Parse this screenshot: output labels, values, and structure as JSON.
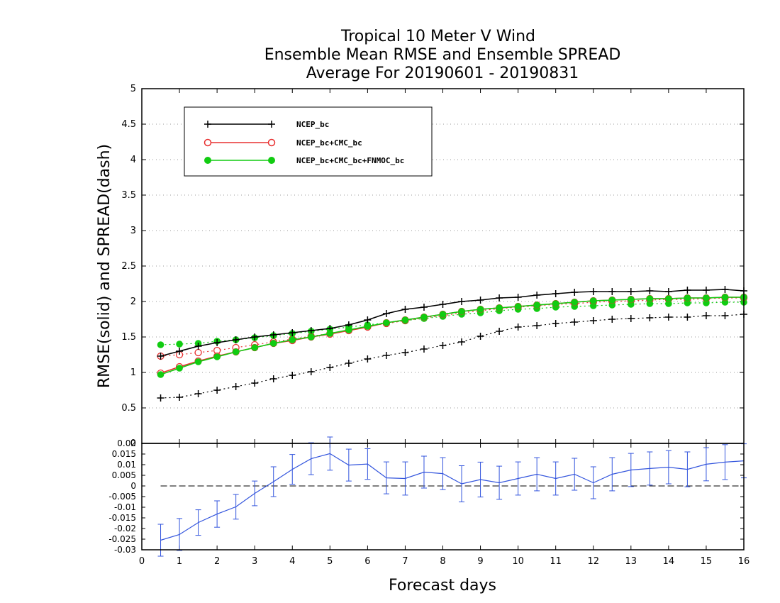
{
  "chart_data": [
    {
      "type": "line",
      "title_lines": [
        "Tropical 10 Meter V Wind",
        "Ensemble Mean RMSE and Ensemble SPREAD",
        "Average For 20190601 - 20190831"
      ],
      "ylabel": "RMSE(solid) and SPREAD(dash)",
      "xlabel": "Forecast days",
      "xlim": [
        0,
        16
      ],
      "ylim": [
        0,
        5
      ],
      "x_ticks": [
        "0",
        "1",
        "2",
        "3",
        "4",
        "5",
        "6",
        "7",
        "8",
        "9",
        "10",
        "11",
        "12",
        "13",
        "14",
        "15",
        "16"
      ],
      "y_ticks": [
        "0",
        "0.5",
        "1",
        "1.5",
        "2",
        "2.5",
        "3",
        "3.5",
        "4",
        "4.5",
        "5"
      ],
      "grid": "horizontal dotted",
      "legend_position": "top-left",
      "x": [
        0.5,
        1,
        1.5,
        2,
        2.5,
        3,
        3.5,
        4,
        4.5,
        5,
        5.5,
        6,
        6.5,
        7,
        7.5,
        8,
        8.5,
        9,
        9.5,
        10,
        10.5,
        11,
        11.5,
        12,
        12.5,
        13,
        13.5,
        14,
        14.5,
        15,
        15.5,
        16
      ],
      "series": [
        {
          "name": "NCEP_bc",
          "color": "#000000",
          "marker": "plus",
          "rmse": [
            1.23,
            1.3,
            1.37,
            1.42,
            1.46,
            1.5,
            1.53,
            1.56,
            1.59,
            1.62,
            1.67,
            1.74,
            1.83,
            1.89,
            1.92,
            1.96,
            2.0,
            2.02,
            2.05,
            2.06,
            2.09,
            2.11,
            2.13,
            2.14,
            2.14,
            2.14,
            2.15,
            2.14,
            2.16,
            2.16,
            2.17,
            2.15
          ],
          "spread": [
            0.64,
            0.65,
            0.7,
            0.75,
            0.8,
            0.85,
            0.91,
            0.96,
            1.01,
            1.07,
            1.13,
            1.19,
            1.24,
            1.28,
            1.33,
            1.38,
            1.43,
            1.51,
            1.58,
            1.64,
            1.66,
            1.69,
            1.71,
            1.73,
            1.75,
            1.76,
            1.77,
            1.78,
            1.78,
            1.8,
            1.8,
            1.82
          ]
        },
        {
          "name": "NCEP_bc+CMC_bc",
          "color": "#e83030",
          "marker": "open-circle",
          "rmse": [
            0.99,
            1.08,
            1.16,
            1.23,
            1.29,
            1.35,
            1.41,
            1.45,
            1.5,
            1.54,
            1.59,
            1.64,
            1.7,
            1.74,
            1.78,
            1.82,
            1.86,
            1.89,
            1.91,
            1.93,
            1.95,
            1.97,
            1.99,
            2.01,
            2.02,
            2.03,
            2.04,
            2.04,
            2.05,
            2.05,
            2.06,
            2.06
          ],
          "spread": [
            1.23,
            1.25,
            1.28,
            1.31,
            1.35,
            1.39,
            1.43,
            1.47,
            1.51,
            1.55,
            1.6,
            1.65,
            1.69,
            1.73,
            1.77,
            1.8,
            1.84,
            1.87,
            1.9,
            1.92,
            1.94,
            1.96,
            1.97,
            1.99,
            2.0,
            2.01,
            2.02,
            2.03,
            2.03,
            2.04,
            2.05,
            2.05
          ]
        },
        {
          "name": "NCEP_bc+CMC_bc+FNMOC_bc",
          "color": "#11cc11",
          "marker": "filled-circle",
          "rmse": [
            0.97,
            1.06,
            1.15,
            1.22,
            1.29,
            1.35,
            1.41,
            1.46,
            1.5,
            1.55,
            1.6,
            1.65,
            1.7,
            1.74,
            1.78,
            1.82,
            1.86,
            1.89,
            1.91,
            1.93,
            1.95,
            1.97,
            1.99,
            2.01,
            2.02,
            2.03,
            2.04,
            2.04,
            2.05,
            2.05,
            2.06,
            2.06
          ],
          "spread": [
            1.39,
            1.4,
            1.41,
            1.44,
            1.46,
            1.49,
            1.52,
            1.55,
            1.58,
            1.61,
            1.64,
            1.67,
            1.7,
            1.73,
            1.76,
            1.79,
            1.82,
            1.84,
            1.87,
            1.89,
            1.9,
            1.92,
            1.93,
            1.94,
            1.95,
            1.96,
            1.97,
            1.97,
            1.98,
            1.98,
            1.99,
            1.99
          ]
        }
      ]
    },
    {
      "type": "line",
      "xlim": [
        0,
        16
      ],
      "ylim": [
        -0.03,
        0.02
      ],
      "y_ticks": [
        "0.02",
        "0.015",
        "0.01",
        "0.005",
        "0",
        "-0.005",
        "-0.01",
        "-0.015",
        "-0.02",
        "-0.025",
        "-0.03"
      ],
      "reference_line": 0,
      "color": "#3355dd",
      "x": [
        0.5,
        1,
        1.5,
        2,
        2.5,
        3,
        3.5,
        4,
        4.5,
        5,
        5.5,
        6,
        6.5,
        7,
        7.5,
        8,
        8.5,
        9,
        9.5,
        10,
        10.5,
        11,
        11.5,
        12,
        12.5,
        13,
        13.5,
        14,
        14.5,
        15,
        15.5,
        16
      ],
      "values": [
        -0.0255,
        -0.0228,
        -0.0172,
        -0.0132,
        -0.0098,
        -0.0035,
        0.002,
        0.0078,
        0.0128,
        0.0152,
        0.0098,
        0.0103,
        0.0038,
        0.0035,
        0.0065,
        0.0058,
        0.001,
        0.003,
        0.0015,
        0.0035,
        0.0055,
        0.0035,
        0.0055,
        0.0015,
        0.0055,
        0.0075,
        0.0082,
        0.0088,
        0.0078,
        0.0102,
        0.0112,
        0.0118
      ],
      "error": [
        0.0075,
        0.0075,
        0.006,
        0.0062,
        0.0058,
        0.0058,
        0.007,
        0.007,
        0.0075,
        0.0078,
        0.0075,
        0.0072,
        0.0075,
        0.0078,
        0.0075,
        0.0075,
        0.0085,
        0.0082,
        0.0078,
        0.0078,
        0.0078,
        0.0078,
        0.0075,
        0.0075,
        0.0078,
        0.0078,
        0.0078,
        0.0078,
        0.0082,
        0.0078,
        0.0082,
        0.008
      ]
    }
  ]
}
